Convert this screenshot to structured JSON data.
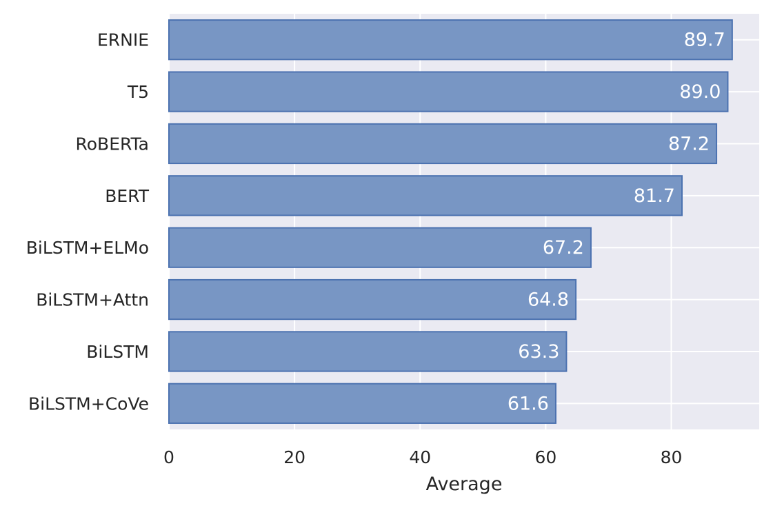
{
  "chart_data": {
    "type": "bar",
    "orientation": "horizontal",
    "categories": [
      "ERNIE",
      "T5",
      "RoBERTa",
      "BERT",
      "BiLSTM+ELMo",
      "BiLSTM+Attn",
      "BiLSTM",
      "BiLSTM+CoVe"
    ],
    "values": [
      89.7,
      89.0,
      87.2,
      81.7,
      67.2,
      64.8,
      63.3,
      61.6
    ],
    "value_labels": [
      "89.7",
      "89.0",
      "87.2",
      "81.7",
      "67.2",
      "64.8",
      "63.3",
      "61.6"
    ],
    "title": "",
    "xlabel": "Average",
    "ylabel": "",
    "xlim": [
      0,
      94
    ],
    "xticks": [
      "0",
      "20",
      "40",
      "60",
      "80"
    ],
    "grid": true,
    "colors": {
      "bar_fill": "#7896c4",
      "bar_edge": "#4c72b0",
      "plot_background": "#eaeaf2",
      "grid": "#ffffff",
      "text": "#262626",
      "value_label": "#ffffff"
    }
  }
}
